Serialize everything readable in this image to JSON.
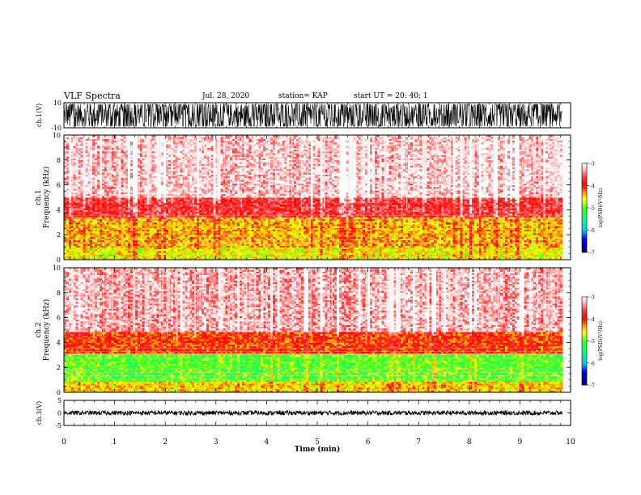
{
  "header": {
    "title": "VLF Spectra",
    "date": "Jul. 28, 2020",
    "station": "station= KAP",
    "start": "start UT =  20: 40: 1"
  },
  "chart_data": [
    {
      "type": "line",
      "panel": "ch1-waveform",
      "ylabel": "ch.1(V)",
      "ylim": [
        -10,
        10
      ],
      "y_ticks": [
        "10",
        "-10"
      ],
      "x_range_min": [
        0,
        9.83
      ],
      "note_values": "dense noisy waveform mostly spanning about -9 to 9 V"
    },
    {
      "type": "heatmap",
      "panel": "ch1-spectrogram",
      "ylabel": "ch.1\nFrequency (kHz)",
      "ylim": [
        0,
        10
      ],
      "y_ticks": [
        "0",
        "2",
        "4",
        "6",
        "8",
        "10"
      ],
      "x_range_min": [
        0,
        9.83
      ],
      "colorbar": {
        "label": "log(PSD)(V²/Hz)",
        "range": [
          -7,
          -3
        ],
        "ticks": [
          "-3",
          "-4",
          "-5",
          "-6",
          "-7"
        ]
      },
      "bands_khz": [
        {
          "from": 0,
          "to": 1.0,
          "level": -4.6
        },
        {
          "from": 1.0,
          "to": 3.5,
          "level": -4.4
        },
        {
          "from": 3.5,
          "to": 5.0,
          "level": -3.7
        },
        {
          "from": 5.0,
          "to": 10,
          "level": -3.2
        }
      ]
    },
    {
      "type": "heatmap",
      "panel": "ch2-spectrogram",
      "ylabel": "ch.2\nFrequency (kHz)",
      "ylim": [
        0,
        10
      ],
      "y_ticks": [
        "0",
        "2",
        "4",
        "6",
        "8",
        "10"
      ],
      "x_range_min": [
        0,
        9.83
      ],
      "colorbar": {
        "label": "log(PSD)(V²/Hz)",
        "range": [
          -7,
          -3
        ],
        "ticks": [
          "-3",
          "-4",
          "-5",
          "-6",
          "-7"
        ]
      },
      "bands_khz": [
        {
          "from": 0,
          "to": 0.8,
          "level": -4.5
        },
        {
          "from": 0.8,
          "to": 3.2,
          "level": -5.0
        },
        {
          "from": 3.2,
          "to": 4.8,
          "level": -4.1
        },
        {
          "from": 4.8,
          "to": 10,
          "level": -3.3
        }
      ]
    },
    {
      "type": "line",
      "panel": "ch3-waveform",
      "ylabel": "ch.3(V)",
      "ylim": [
        -5,
        5
      ],
      "y_ticks": [
        "5",
        "0",
        "-5"
      ],
      "x_range_min": [
        0,
        9.83
      ],
      "note_values": "narrow band near 0 V"
    }
  ],
  "x_axis": {
    "xlabel": "Time (min)",
    "xlim": [
      0,
      10
    ],
    "ticks": [
      "0",
      "1",
      "2",
      "3",
      "4",
      "5",
      "6",
      "7",
      "8",
      "9",
      "10"
    ]
  },
  "colors": {
    "red": "#ff0000",
    "light_red": "#ff9a9a",
    "orange": "#ff7a00",
    "yellow": "#ffff00",
    "green": "#33ff33",
    "cyan": "#00ffff",
    "blue": "#0000ff",
    "black": "#000000"
  }
}
